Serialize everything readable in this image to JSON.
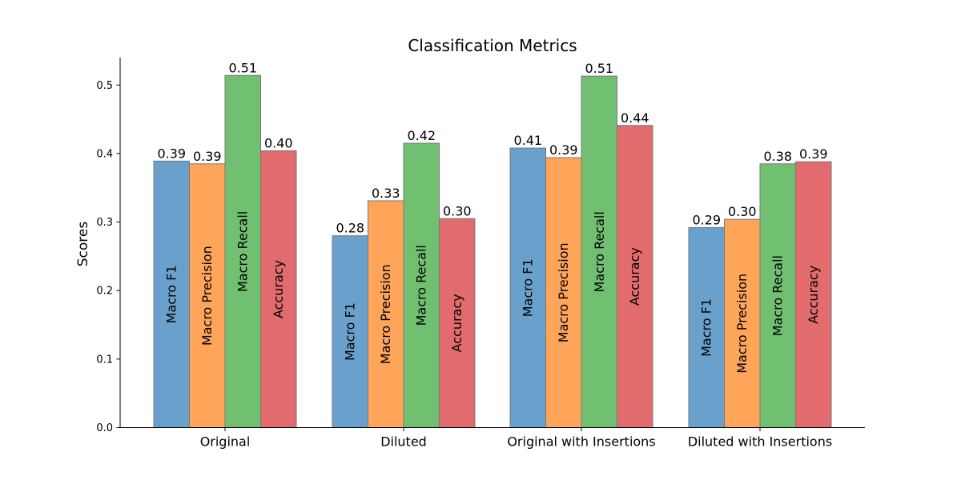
{
  "chart_data": {
    "type": "bar",
    "title": "Classification Metrics",
    "xlabel": "",
    "ylabel": "Scores",
    "ylim": [
      0,
      0.54
    ],
    "yticks": [
      0.0,
      0.1,
      0.2,
      0.3,
      0.4,
      0.5
    ],
    "ytick_labels": [
      "0.0",
      "0.1",
      "0.2",
      "0.3",
      "0.4",
      "0.5"
    ],
    "categories": [
      "Original",
      "Diluted",
      "Original with Insertions",
      "Diluted with Insertions"
    ],
    "series": [
      {
        "name": "Macro F1",
        "color": "#6aa1cc",
        "values": [
          0.389,
          0.28,
          0.408,
          0.292
        ],
        "labels": [
          "0.39",
          "0.28",
          "0.41",
          "0.29"
        ]
      },
      {
        "name": "Macro Precision",
        "color": "#ffa55a",
        "values": [
          0.385,
          0.331,
          0.394,
          0.304
        ],
        "labels": [
          "0.39",
          "0.33",
          "0.39",
          "0.30"
        ]
      },
      {
        "name": "Macro Recall",
        "color": "#71c072",
        "values": [
          0.514,
          0.415,
          0.513,
          0.385
        ],
        "labels": [
          "0.51",
          "0.42",
          "0.51",
          "0.38"
        ]
      },
      {
        "name": "Accuracy",
        "color": "#e26b6d",
        "values": [
          0.404,
          0.305,
          0.441,
          0.388
        ],
        "labels": [
          "0.40",
          "0.30",
          "0.44",
          "0.39"
        ]
      }
    ],
    "grid": false,
    "legend": "none"
  }
}
